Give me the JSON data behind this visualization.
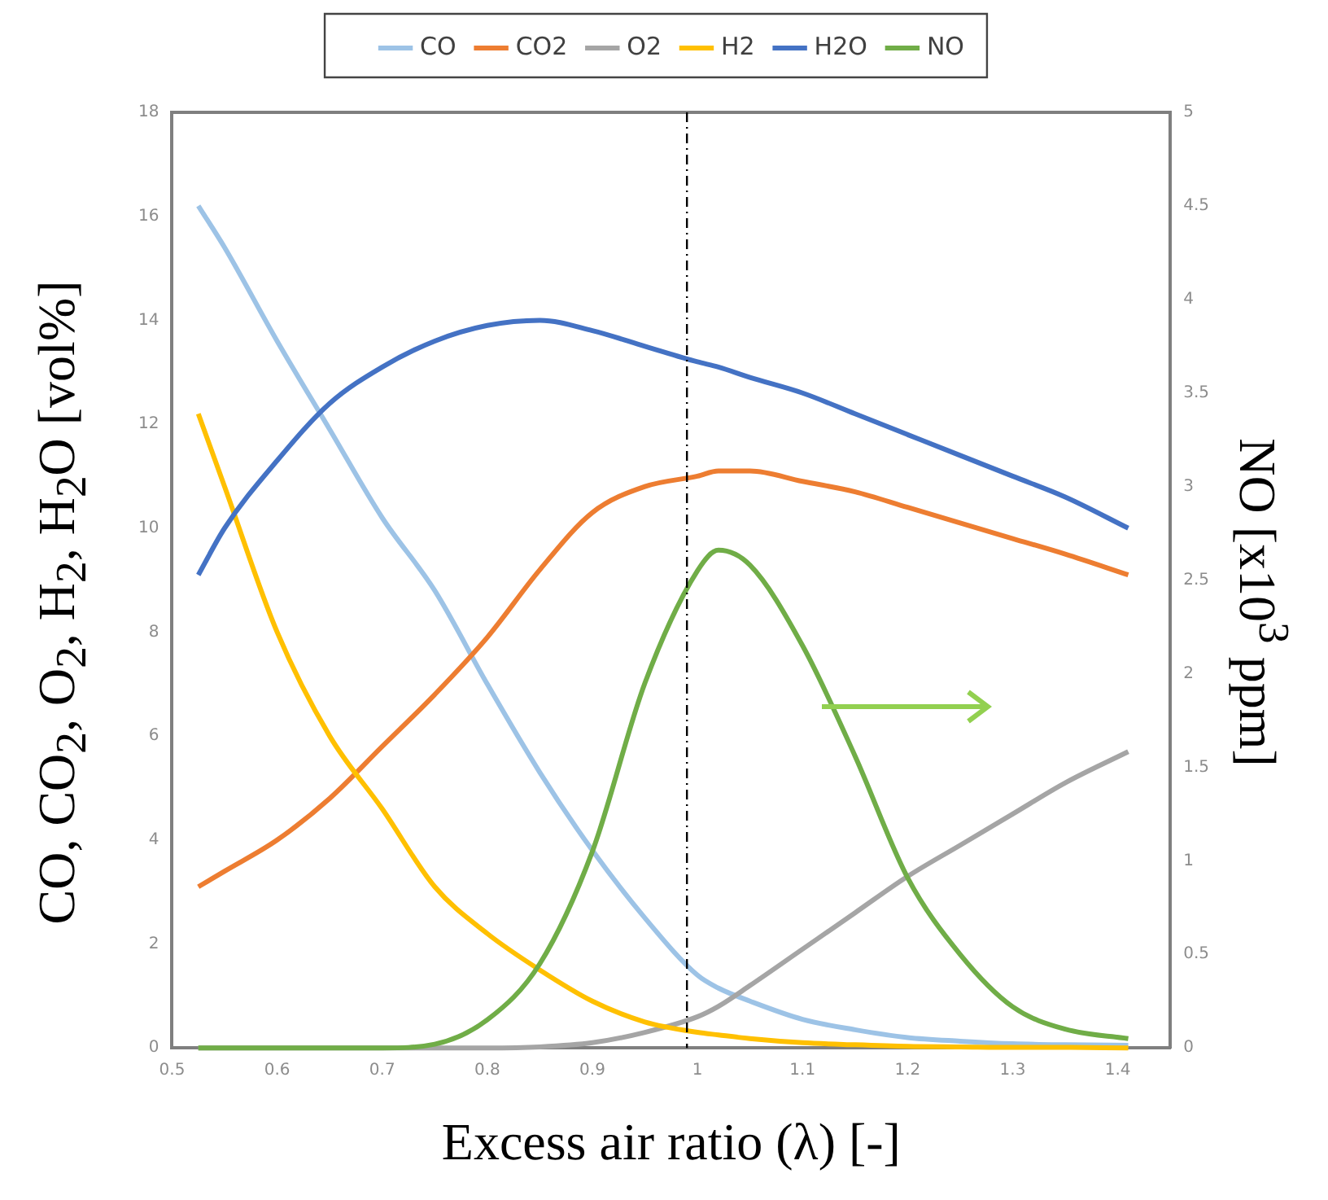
{
  "chart_data": {
    "type": "line",
    "xlabel": "Excess air ratio (λ) [-]",
    "ylabel": "CO, CO$_{2}$, O$_{2}$, H$_{2}$, H$_{2}$O [vol%]",
    "y2label": "NO [x10$^{3}$ ppm]",
    "x": [
      0.525,
      0.55,
      0.6,
      0.65,
      0.7,
      0.75,
      0.8,
      0.85,
      0.9,
      0.95,
      1.0,
      1.02,
      1.05,
      1.1,
      1.15,
      1.2,
      1.25,
      1.3,
      1.35,
      1.41
    ],
    "series": [
      {
        "name": "CO",
        "color": "#9dc3e6",
        "values": [
          16.2,
          15.4,
          13.6,
          11.9,
          10.2,
          8.8,
          7.0,
          5.3,
          3.8,
          2.5,
          1.4,
          1.15,
          0.9,
          0.55,
          0.35,
          0.2,
          0.13,
          0.08,
          0.06,
          0.05
        ]
      },
      {
        "name": "CO2",
        "color": "#ed7d31",
        "values": [
          3.1,
          3.4,
          4.0,
          4.8,
          5.8,
          6.8,
          7.9,
          9.2,
          10.3,
          10.8,
          11.0,
          11.1,
          11.1,
          10.9,
          10.7,
          10.4,
          10.1,
          9.8,
          9.5,
          9.1
        ]
      },
      {
        "name": "O2",
        "color": "#a5a5a5",
        "values": [
          0,
          0,
          0,
          0,
          0,
          0,
          0,
          0.02,
          0.1,
          0.3,
          0.6,
          0.8,
          1.2,
          1.9,
          2.6,
          3.3,
          3.9,
          4.5,
          5.1,
          5.7
        ]
      },
      {
        "name": "H2",
        "color": "#ffc000",
        "values": [
          12.2,
          10.8,
          8.0,
          6.0,
          4.6,
          3.1,
          2.2,
          1.5,
          0.9,
          0.5,
          0.3,
          0.25,
          0.18,
          0.1,
          0.06,
          0.03,
          0.02,
          0.01,
          0.01,
          0
        ]
      },
      {
        "name": "H2O",
        "color": "#4472c4",
        "values": [
          9.1,
          10.0,
          11.3,
          12.4,
          13.1,
          13.6,
          13.9,
          14.0,
          13.8,
          13.5,
          13.2,
          13.1,
          12.9,
          12.6,
          12.2,
          11.8,
          11.4,
          11.0,
          10.6,
          10.0
        ]
      },
      {
        "name": "NO",
        "color": "#70ad47",
        "axis": "y2",
        "values": [
          0,
          0,
          0,
          0,
          0,
          0.02,
          0.15,
          0.45,
          1.05,
          1.95,
          2.55,
          2.66,
          2.58,
          2.15,
          1.56,
          0.91,
          0.5,
          0.22,
          0.1,
          0.05
        ]
      }
    ],
    "xlim": [
      0.5,
      1.45
    ],
    "xticks": [
      0.5,
      0.6,
      0.7,
      0.8,
      0.9,
      1,
      1.1,
      1.2,
      1.3,
      1.4
    ],
    "ylim": [
      0,
      18
    ],
    "yticks": [
      0,
      2,
      4,
      6,
      8,
      10,
      12,
      14,
      16,
      18
    ],
    "y2lim": [
      0,
      5
    ],
    "y2ticks": [
      0,
      0.5,
      1,
      1.5,
      2,
      2.5,
      3,
      3.5,
      4,
      4.5,
      5
    ],
    "ref_lines": [
      {
        "axis": "x",
        "value": 0.99,
        "color": "#000000",
        "line_style": "dashdot"
      }
    ],
    "grid": false,
    "legend": "top",
    "marker": "none",
    "line_style": "solid"
  }
}
